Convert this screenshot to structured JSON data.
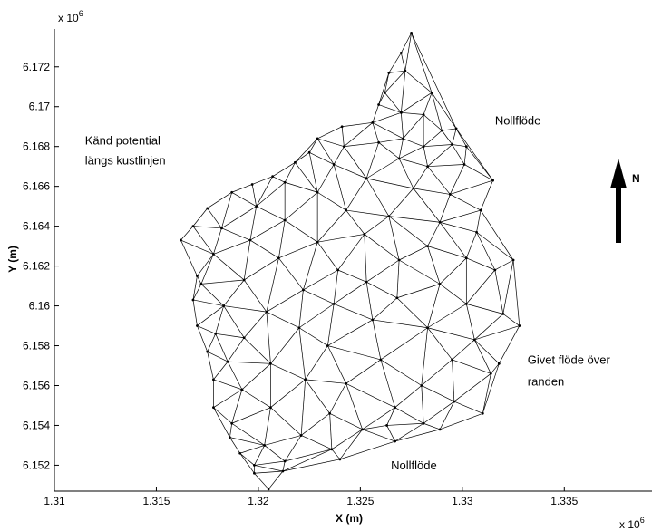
{
  "chart_data": {
    "type": "mesh",
    "xlabel": "X (m)",
    "ylabel": "Y (m)",
    "x_multiplier": "x 10",
    "x_multiplier_exp": "6",
    "y_multiplier": "x 10",
    "y_multiplier_exp": "6",
    "xlim": [
      1.31,
      1.3393
    ],
    "ylim": [
      6.1507,
      6.1739
    ],
    "xticks": [
      "1.31",
      "1.315",
      "1.32",
      "1.325",
      "1.33",
      "1.335"
    ],
    "xtick_values": [
      1.31,
      1.315,
      1.32,
      1.325,
      1.33,
      1.335
    ],
    "yticks": [
      "6.152",
      "6.154",
      "6.156",
      "6.158",
      "6.16",
      "6.162",
      "6.164",
      "6.166",
      "6.168",
      "6.17",
      "6.172"
    ],
    "ytick_values": [
      6.152,
      6.154,
      6.156,
      6.158,
      6.16,
      6.162,
      6.164,
      6.166,
      6.168,
      6.17,
      6.172
    ],
    "boundary": [
      [
        1.3275,
        6.1737
      ],
      [
        1.3297,
        6.1689
      ],
      [
        1.3315,
        6.1663
      ],
      [
        1.3309,
        6.1648
      ],
      [
        1.3325,
        6.1623
      ],
      [
        1.3328,
        6.159
      ],
      [
        1.3318,
        6.1571
      ],
      [
        1.331,
        6.1546
      ],
      [
        1.3289,
        6.1538
      ],
      [
        1.3267,
        6.1532
      ],
      [
        1.324,
        6.1523
      ],
      [
        1.3212,
        6.1517
      ],
      [
        1.3205,
        6.1508
      ],
      [
        1.3198,
        6.1516
      ],
      [
        1.3191,
        6.1526
      ],
      [
        1.3186,
        6.1534
      ],
      [
        1.3178,
        6.1549
      ],
      [
        1.3178,
        6.1563
      ],
      [
        1.3175,
        6.1577
      ],
      [
        1.317,
        6.159
      ],
      [
        1.3168,
        6.1603
      ],
      [
        1.317,
        6.1615
      ],
      [
        1.3162,
        6.1633
      ],
      [
        1.3168,
        6.164
      ],
      [
        1.3175,
        6.1649
      ],
      [
        1.3187,
        6.1657
      ],
      [
        1.3197,
        6.1661
      ],
      [
        1.3207,
        6.1665
      ],
      [
        1.3218,
        6.1672
      ],
      [
        1.3229,
        6.1684
      ],
      [
        1.3241,
        6.169
      ],
      [
        1.3256,
        6.1692
      ],
      [
        1.3259,
        6.1701
      ],
      [
        1.3264,
        6.1717
      ],
      [
        1.327,
        6.1727
      ]
    ],
    "interior_points": [
      [
        1.3272,
        6.1718
      ],
      [
        1.3262,
        6.1707
      ],
      [
        1.3285,
        6.1707
      ],
      [
        1.327,
        6.1697
      ],
      [
        1.3281,
        6.1696
      ],
      [
        1.329,
        6.1688
      ],
      [
        1.3302,
        6.168
      ],
      [
        1.3271,
        6.1684
      ],
      [
        1.3295,
        6.1681
      ],
      [
        1.3281,
        6.168
      ],
      [
        1.3259,
        6.1682
      ],
      [
        1.3242,
        6.168
      ],
      [
        1.3225,
        6.1677
      ],
      [
        1.3269,
        6.1674
      ],
      [
        1.3237,
        6.1671
      ],
      [
        1.3283,
        6.167
      ],
      [
        1.3301,
        6.1671
      ],
      [
        1.3213,
        6.1662
      ],
      [
        1.3253,
        6.1664
      ],
      [
        1.3229,
        6.1657
      ],
      [
        1.3276,
        6.1659
      ],
      [
        1.3199,
        6.165
      ],
      [
        1.3243,
        6.1648
      ],
      [
        1.3294,
        6.1656
      ],
      [
        1.3213,
        6.1643
      ],
      [
        1.3182,
        6.1639
      ],
      [
        1.3264,
        6.1645
      ],
      [
        1.3289,
        6.1642
      ],
      [
        1.3307,
        6.1637
      ],
      [
        1.3196,
        6.1633
      ],
      [
        1.3229,
        6.1632
      ],
      [
        1.3252,
        6.1636
      ],
      [
        1.3178,
        6.1626
      ],
      [
        1.321,
        6.1624
      ],
      [
        1.3283,
        6.163
      ],
      [
        1.3269,
        6.1623
      ],
      [
        1.3302,
        6.1624
      ],
      [
        1.3172,
        6.1611
      ],
      [
        1.3193,
        6.1613
      ],
      [
        1.3239,
        6.1618
      ],
      [
        1.3253,
        6.1612
      ],
      [
        1.3316,
        6.1618
      ],
      [
        1.3222,
        6.1608
      ],
      [
        1.3289,
        6.1611
      ],
      [
        1.3183,
        6.16
      ],
      [
        1.3204,
        6.1597
      ],
      [
        1.3237,
        6.1601
      ],
      [
        1.3268,
        6.1604
      ],
      [
        1.3302,
        6.1601
      ],
      [
        1.3256,
        6.1593
      ],
      [
        1.332,
        6.1596
      ],
      [
        1.3179,
        6.1586
      ],
      [
        1.3193,
        6.1584
      ],
      [
        1.322,
        6.1589
      ],
      [
        1.3283,
        6.1589
      ],
      [
        1.3234,
        6.158
      ],
      [
        1.3306,
        6.1583
      ],
      [
        1.3185,
        6.1572
      ],
      [
        1.3206,
        6.1571
      ],
      [
        1.326,
        6.1573
      ],
      [
        1.3295,
        6.1573
      ],
      [
        1.3314,
        6.1566
      ],
      [
        1.3192,
        6.1558
      ],
      [
        1.3223,
        6.1563
      ],
      [
        1.3243,
        6.1561
      ],
      [
        1.328,
        6.156
      ],
      [
        1.3206,
        6.1549
      ],
      [
        1.3267,
        6.1549
      ],
      [
        1.3296,
        6.1552
      ],
      [
        1.3235,
        6.1546
      ],
      [
        1.3187,
        6.1541
      ],
      [
        1.3251,
        6.1538
      ],
      [
        1.3221,
        6.1535
      ],
      [
        1.3203,
        6.153
      ],
      [
        1.3281,
        6.1541
      ],
      [
        1.3236,
        6.1528
      ],
      [
        1.3213,
        6.1522
      ],
      [
        1.3198,
        6.152
      ],
      [
        1.3263,
        6.154
      ]
    ],
    "annotations": [
      {
        "text": "Känd potential",
        "x": 1.3115,
        "y": 6.1681
      },
      {
        "text": "längs kustlinjen",
        "x": 1.3115,
        "y": 6.1671
      },
      {
        "text": "Nollflöde",
        "x": 1.3316,
        "y": 6.1691
      },
      {
        "text": "Givet flöde över",
        "x": 1.3332,
        "y": 6.1571
      },
      {
        "text": "randen",
        "x": 1.3332,
        "y": 6.156
      },
      {
        "text": "Nollflöde",
        "x": 1.3265,
        "y": 6.1518
      }
    ],
    "north_label": "N",
    "grid": false
  }
}
